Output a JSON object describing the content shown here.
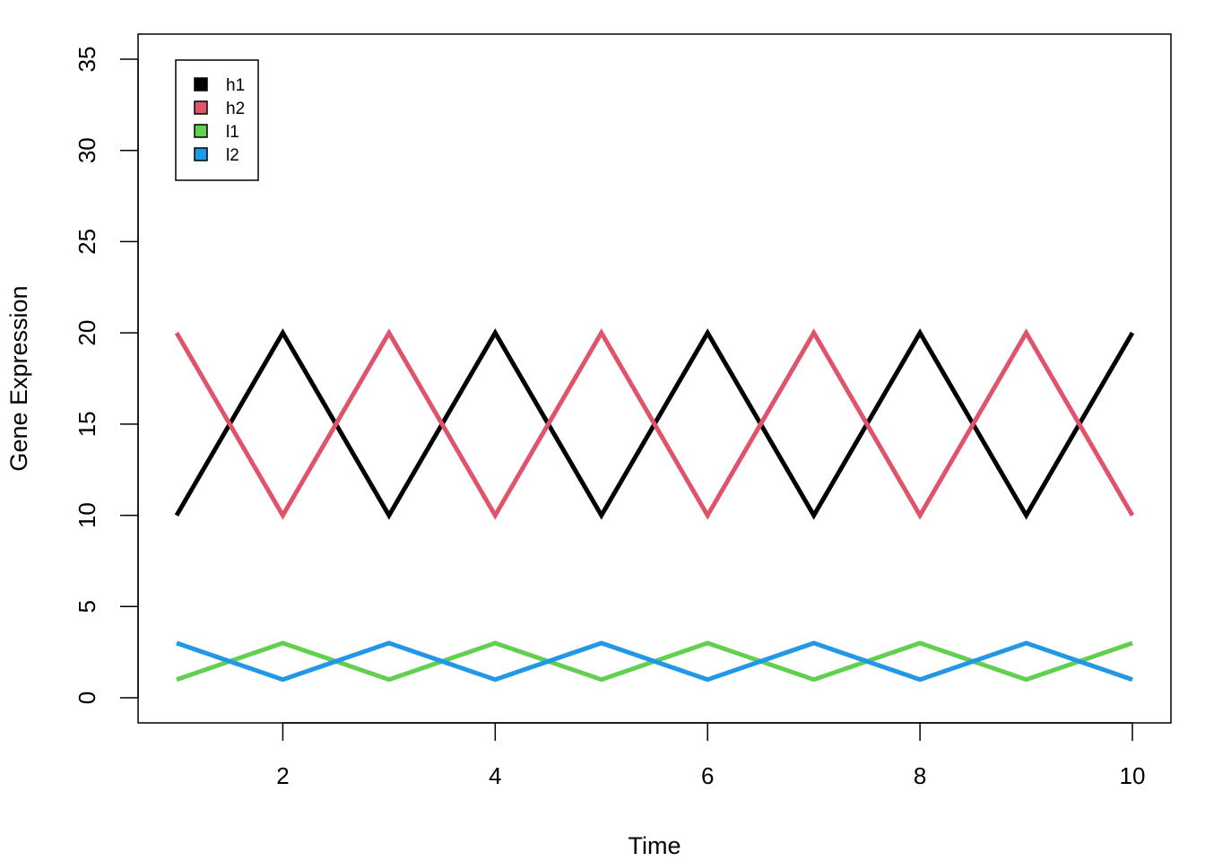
{
  "chart_data": {
    "type": "line",
    "title": "",
    "xlabel": "Time",
    "ylabel": "Gene Expression",
    "xlim": [
      1,
      10
    ],
    "ylim": [
      0,
      35
    ],
    "x": [
      1,
      2,
      3,
      4,
      5,
      6,
      7,
      8,
      9,
      10
    ],
    "xticks": [
      2,
      4,
      6,
      8,
      10
    ],
    "yticks": [
      0,
      5,
      10,
      15,
      20,
      25,
      30,
      35
    ],
    "grid": false,
    "legend_position": "top-left",
    "series": [
      {
        "name": "h1",
        "color": "#000000",
        "values": [
          10,
          20,
          10,
          20,
          10,
          20,
          10,
          20,
          10,
          20
        ]
      },
      {
        "name": "h2",
        "color": "#DF536B",
        "values": [
          20,
          10,
          20,
          10,
          20,
          10,
          20,
          10,
          20,
          10
        ]
      },
      {
        "name": "l1",
        "color": "#61D04F",
        "values": [
          1,
          3,
          1,
          3,
          1,
          3,
          1,
          3,
          1,
          3
        ]
      },
      {
        "name": "l2",
        "color": "#2297E6",
        "values": [
          3,
          1,
          3,
          1,
          3,
          1,
          3,
          1,
          3,
          1
        ]
      }
    ]
  }
}
